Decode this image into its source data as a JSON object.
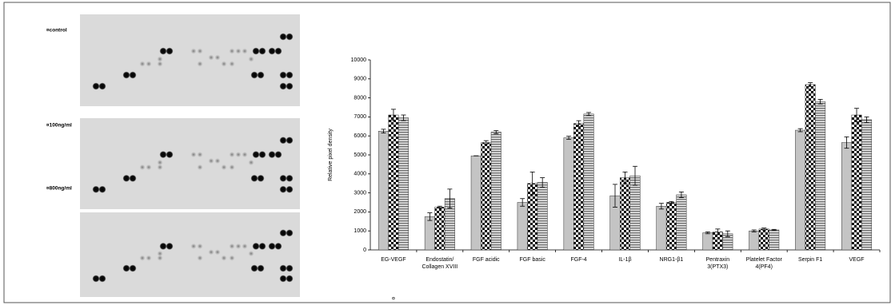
{
  "chart_data": {
    "type": "bar",
    "y_label": "Relative pixel density",
    "note": "¤",
    "categories": [
      "EG-VEGF",
      "Endostatin/\nCollagen XVIII",
      "FGF acidic",
      "FGF basic",
      "FGF-4",
      "IL-1β",
      "NRG1-β1",
      "Pentraxin\n3(PTX3)",
      "Platelet Factor\n4(PF4)",
      "Serpin F1",
      "VEGF"
    ],
    "series": [
      {
        "name": "¤control",
        "color": "#c4c4c4",
        "pattern": "solid",
        "values": [
          6250,
          1750,
          4950,
          2500,
          5900,
          2850,
          2300,
          900,
          1000,
          6300,
          5650
        ],
        "errors": [
          100,
          200,
          0,
          200,
          80,
          600,
          150,
          50,
          50,
          80,
          300
        ]
      },
      {
        "name": "¤100ng/ml",
        "color": "#000000",
        "pattern": "checker",
        "values": [
          7100,
          2250,
          5650,
          3500,
          6650,
          3800,
          2500,
          950,
          1100,
          8700,
          7100
        ],
        "errors": [
          300,
          50,
          100,
          600,
          150,
          300,
          50,
          150,
          50,
          100,
          350
        ]
      },
      {
        "name": "¤800ng/ml",
        "color": "#808080",
        "pattern": "hstripe",
        "values": [
          6950,
          2700,
          6200,
          3550,
          7150,
          3900,
          2900,
          850,
          1050,
          7800,
          6850
        ],
        "errors": [
          150,
          500,
          80,
          250,
          80,
          500,
          150,
          150,
          30,
          120,
          150
        ]
      }
    ],
    "ylim": [
      0,
      10000
    ],
    "yticks": [
      0,
      1000,
      2000,
      3000,
      4000,
      5000,
      6000,
      7000,
      8000,
      9000,
      10000
    ],
    "grid": false
  }
}
